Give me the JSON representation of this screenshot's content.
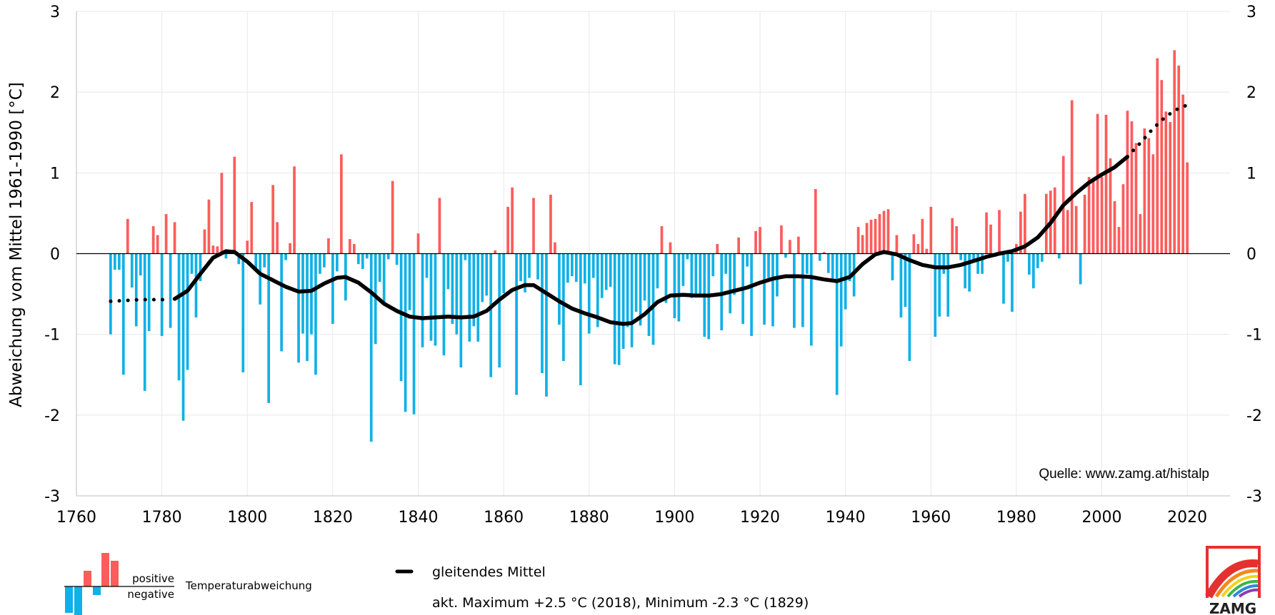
{
  "chart_data": {
    "type": "bar",
    "ylabel": "Abweichung vom Mittel 1961-1990 [°C]",
    "xlim": [
      1760,
      2030
    ],
    "ylim": [
      -3,
      3
    ],
    "x_ticks": [
      1760,
      1780,
      1800,
      1820,
      1840,
      1860,
      1880,
      1900,
      1920,
      1940,
      1960,
      1980,
      2000,
      2020
    ],
    "y_ticks": [
      -3,
      -2,
      -1,
      0,
      1,
      2,
      3
    ],
    "grid": true,
    "colors": {
      "positive": "#fd5c5c",
      "negative": "#10b1e6",
      "mean": "#000000",
      "axis": "#000000",
      "grid": "#e8e8e8"
    },
    "years_start": 1768,
    "values": [
      -1.0,
      -0.2,
      -0.2,
      -1.5,
      0.43,
      -0.42,
      -0.9,
      -0.27,
      -1.7,
      -0.96,
      0.34,
      0.23,
      -1.02,
      0.49,
      -0.92,
      0.39,
      -1.57,
      -2.07,
      -1.44,
      -0.25,
      -0.79,
      -0.34,
      0.3,
      0.67,
      0.1,
      0.09,
      1.0,
      -0.06,
      0.0,
      1.2,
      -0.13,
      -1.47,
      0.16,
      0.64,
      -0.18,
      -0.63,
      -0.17,
      -1.85,
      0.85,
      0.39,
      -1.21,
      -0.08,
      0.13,
      1.08,
      -1.35,
      -0.99,
      -1.33,
      -1.0,
      -1.5,
      -0.25,
      -0.17,
      0.19,
      -0.87,
      -0.22,
      1.23,
      -0.58,
      0.18,
      0.12,
      -0.13,
      -0.19,
      -0.06,
      -2.33,
      -1.12,
      -0.35,
      -0.62,
      -0.07,
      0.9,
      -0.14,
      -1.58,
      -1.96,
      -0.7,
      -1.99,
      0.25,
      -1.16,
      -0.3,
      -1.08,
      -1.14,
      0.69,
      -1.26,
      -0.44,
      -0.87,
      -1.0,
      -1.41,
      -0.08,
      -1.09,
      -0.9,
      -1.09,
      -0.6,
      -0.52,
      -1.53,
      0.04,
      -1.41,
      -0.49,
      0.58,
      0.82,
      -1.75,
      -0.34,
      -0.48,
      -0.3,
      0.69,
      -0.32,
      -1.48,
      -1.77,
      0.73,
      0.14,
      -0.88,
      -1.33,
      -0.36,
      -0.28,
      -0.35,
      -1.63,
      -0.37,
      -0.99,
      -0.3,
      -0.91,
      -0.55,
      -0.45,
      -0.41,
      -1.37,
      -1.38,
      -1.18,
      -0.91,
      -1.16,
      -0.72,
      -0.89,
      -0.58,
      -1.02,
      -1.13,
      -0.43,
      0.34,
      -0.61,
      0.14,
      -0.8,
      -0.84,
      -0.4,
      -0.07,
      -0.55,
      -0.53,
      -0.53,
      -1.03,
      -1.06,
      -0.28,
      0.12,
      -0.95,
      -0.25,
      -0.74,
      -0.51,
      0.2,
      -0.87,
      -0.16,
      -1.02,
      0.28,
      0.33,
      -0.88,
      -0.3,
      -0.9,
      -0.53,
      0.35,
      -0.05,
      0.17,
      -0.92,
      0.21,
      -0.91,
      -0.25,
      -1.14,
      0.8,
      -0.09,
      0.02,
      -0.24,
      -0.35,
      -1.75,
      -1.15,
      -0.69,
      -0.34,
      -0.53,
      0.33,
      0.23,
      0.38,
      0.42,
      0.43,
      0.49,
      0.53,
      0.55,
      -0.33,
      0.23,
      -0.79,
      -0.66,
      -1.33,
      0.24,
      0.12,
      0.43,
      0.06,
      0.58,
      -1.03,
      -0.78,
      -0.25,
      -0.78,
      0.44,
      0.34,
      -0.08,
      -0.43,
      -0.47,
      -0.08,
      -0.25,
      -0.25,
      0.51,
      0.36,
      -0.04,
      0.54,
      -0.62,
      -0.1,
      -0.72,
      0.12,
      0.52,
      0.74,
      -0.26,
      -0.43,
      -0.18,
      -0.1,
      0.74,
      0.78,
      0.82,
      -0.06,
      1.21,
      0.54,
      1.9,
      0.59,
      -0.38,
      0.73,
      0.95,
      0.91,
      1.73,
      0.95,
      1.72,
      1.18,
      0.65,
      0.33,
      0.86,
      1.77,
      1.64,
      1.37,
      0.49,
      1.55,
      1.43,
      1.23,
      2.42,
      2.15,
      1.76,
      1.63,
      2.52,
      2.33,
      1.97,
      1.13
    ],
    "smooth": [
      [
        1768,
        -0.59,
        "dotted"
      ],
      [
        1775,
        -0.57,
        "dotted"
      ],
      [
        1782,
        -0.57,
        "dotted"
      ],
      [
        1783,
        -0.56,
        "solid"
      ],
      [
        1786,
        -0.46,
        "solid"
      ],
      [
        1789,
        -0.25,
        "solid"
      ],
      [
        1792,
        -0.05,
        "solid"
      ],
      [
        1795,
        0.03,
        "solid"
      ],
      [
        1797,
        0.02,
        "solid"
      ],
      [
        1800,
        -0.1,
        "solid"
      ],
      [
        1803,
        -0.25,
        "solid"
      ],
      [
        1806,
        -0.33,
        "solid"
      ],
      [
        1809,
        -0.41,
        "solid"
      ],
      [
        1812,
        -0.47,
        "solid"
      ],
      [
        1815,
        -0.46,
        "solid"
      ],
      [
        1818,
        -0.37,
        "solid"
      ],
      [
        1821,
        -0.3,
        "solid"
      ],
      [
        1823,
        -0.29,
        "solid"
      ],
      [
        1826,
        -0.36,
        "solid"
      ],
      [
        1829,
        -0.48,
        "solid"
      ],
      [
        1832,
        -0.62,
        "solid"
      ],
      [
        1835,
        -0.71,
        "solid"
      ],
      [
        1838,
        -0.78,
        "solid"
      ],
      [
        1841,
        -0.8,
        "solid"
      ],
      [
        1844,
        -0.79,
        "solid"
      ],
      [
        1847,
        -0.78,
        "solid"
      ],
      [
        1850,
        -0.79,
        "solid"
      ],
      [
        1853,
        -0.78,
        "solid"
      ],
      [
        1856,
        -0.71,
        "solid"
      ],
      [
        1859,
        -0.57,
        "solid"
      ],
      [
        1862,
        -0.45,
        "solid"
      ],
      [
        1865,
        -0.39,
        "solid"
      ],
      [
        1867,
        -0.39,
        "solid"
      ],
      [
        1870,
        -0.49,
        "solid"
      ],
      [
        1873,
        -0.59,
        "solid"
      ],
      [
        1876,
        -0.68,
        "solid"
      ],
      [
        1879,
        -0.74,
        "solid"
      ],
      [
        1882,
        -0.79,
        "solid"
      ],
      [
        1885,
        -0.85,
        "solid"
      ],
      [
        1888,
        -0.87,
        "solid"
      ],
      [
        1890,
        -0.86,
        "solid"
      ],
      [
        1893,
        -0.75,
        "solid"
      ],
      [
        1896,
        -0.6,
        "solid"
      ],
      [
        1899,
        -0.52,
        "solid"
      ],
      [
        1902,
        -0.51,
        "solid"
      ],
      [
        1905,
        -0.52,
        "solid"
      ],
      [
        1908,
        -0.52,
        "solid"
      ],
      [
        1911,
        -0.5,
        "solid"
      ],
      [
        1914,
        -0.46,
        "solid"
      ],
      [
        1917,
        -0.42,
        "solid"
      ],
      [
        1920,
        -0.36,
        "solid"
      ],
      [
        1923,
        -0.31,
        "solid"
      ],
      [
        1926,
        -0.28,
        "solid"
      ],
      [
        1929,
        -0.28,
        "solid"
      ],
      [
        1932,
        -0.29,
        "solid"
      ],
      [
        1935,
        -0.32,
        "solid"
      ],
      [
        1938,
        -0.34,
        "solid"
      ],
      [
        1941,
        -0.29,
        "solid"
      ],
      [
        1944,
        -0.13,
        "solid"
      ],
      [
        1947,
        -0.01,
        "solid"
      ],
      [
        1949,
        0.02,
        "solid"
      ],
      [
        1952,
        -0.01,
        "solid"
      ],
      [
        1955,
        -0.08,
        "solid"
      ],
      [
        1958,
        -0.14,
        "solid"
      ],
      [
        1961,
        -0.17,
        "solid"
      ],
      [
        1964,
        -0.17,
        "solid"
      ],
      [
        1967,
        -0.14,
        "solid"
      ],
      [
        1970,
        -0.09,
        "solid"
      ],
      [
        1973,
        -0.04,
        "solid"
      ],
      [
        1976,
        0.0,
        "solid"
      ],
      [
        1979,
        0.03,
        "solid"
      ],
      [
        1982,
        0.09,
        "solid"
      ],
      [
        1985,
        0.2,
        "solid"
      ],
      [
        1988,
        0.38,
        "solid"
      ],
      [
        1991,
        0.6,
        "solid"
      ],
      [
        1994,
        0.75,
        "solid"
      ],
      [
        1997,
        0.88,
        "solid"
      ],
      [
        2000,
        0.98,
        "solid"
      ],
      [
        2003,
        1.07,
        "solid"
      ],
      [
        2006,
        1.2,
        "solid"
      ],
      [
        2006,
        1.2,
        "dotted"
      ],
      [
        2009,
        1.37,
        "dotted"
      ],
      [
        2012,
        1.55,
        "dotted"
      ],
      [
        2015,
        1.7,
        "dotted"
      ],
      [
        2018,
        1.8,
        "dotted"
      ],
      [
        2021,
        1.86,
        "dotted"
      ]
    ],
    "source": "Quelle: www.zamg.at/histalp",
    "legend": {
      "positive_label": "positive",
      "negative_label": "negative",
      "deviation_label": "Temperaturabweichung",
      "mean_label": "gleitendes Mittel",
      "extremes_label": "akt. Maximum +2.5 °C (2018), Minimum -2.3 °C (1829)"
    },
    "logo_text": "ZAMG"
  }
}
